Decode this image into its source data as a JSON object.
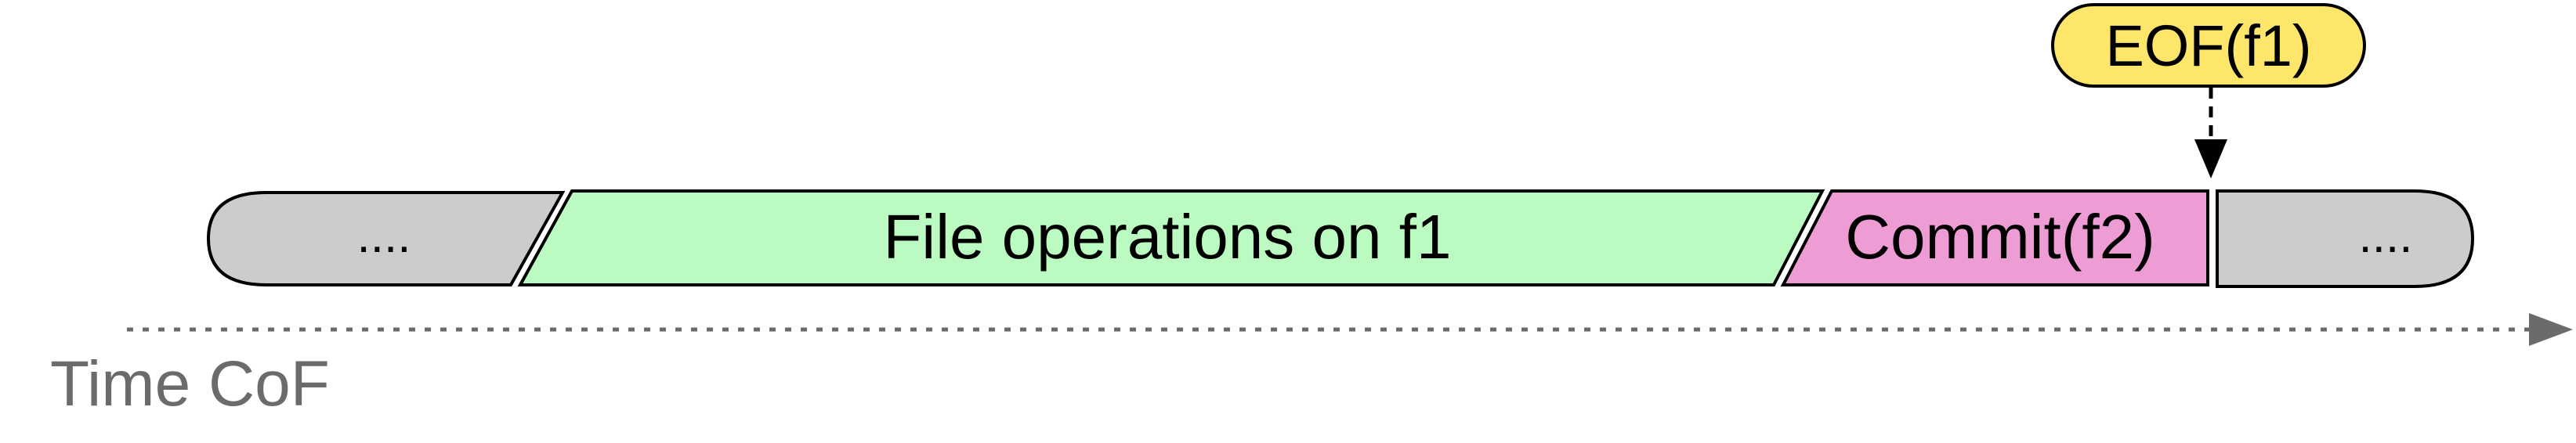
{
  "timeline": {
    "segments": [
      {
        "label": "....",
        "fill": "#cccccc"
      },
      {
        "label": "File operations on f1",
        "fill": "#bbfbc2"
      },
      {
        "label": "Commit(f2)",
        "fill": "#ee9dd4"
      },
      {
        "label": "....",
        "fill": "#cccccc"
      }
    ]
  },
  "event_marker": {
    "label": "EOF(f1)",
    "fill": "#fee66a"
  },
  "axis": {
    "label": "Time CoF",
    "color": "#6b6b6b"
  },
  "colors": {
    "stroke": "#000000"
  }
}
